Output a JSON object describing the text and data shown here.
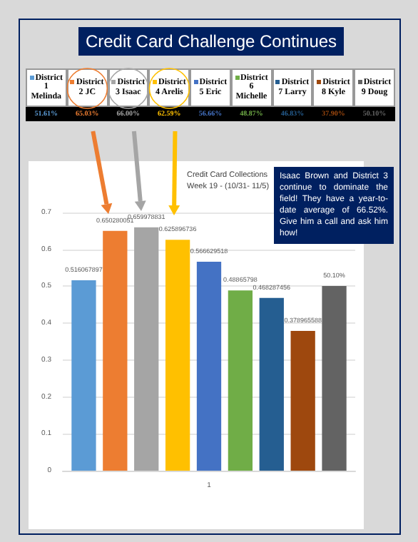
{
  "chart_data": {
    "type": "bar",
    "title": "Credit Card Collections",
    "subtitle": "Week 19 - (10/31- 11/5)",
    "categories": [
      "1"
    ],
    "series": [
      {
        "name": "District 1 Melinda",
        "color": "#5b9bd5",
        "values": [
          0.516067897
        ],
        "value_labels": [
          "0.516067897"
        ]
      },
      {
        "name": "District 2 JC",
        "color": "#ed7d31",
        "values": [
          0.650280051
        ],
        "value_labels": [
          "0.650280051"
        ]
      },
      {
        "name": "District 3 Isaac",
        "color": "#a5a5a5",
        "values": [
          0.659978831
        ],
        "value_labels": [
          "0.659978831"
        ]
      },
      {
        "name": "District 4 Arelis",
        "color": "#ffc000",
        "values": [
          0.625896736
        ],
        "value_labels": [
          "0.625896736"
        ]
      },
      {
        "name": "District 5 Eric",
        "color": "#4472c4",
        "values": [
          0.566629518
        ],
        "value_labels": [
          "0.566629518"
        ]
      },
      {
        "name": "District 6 Michelle",
        "color": "#70ad47",
        "values": [
          0.48865798
        ],
        "value_labels": [
          "0.48865798"
        ]
      },
      {
        "name": "District 7 Larry",
        "color": "#255e91",
        "values": [
          0.468287456
        ],
        "value_labels": [
          "0.468287456"
        ]
      },
      {
        "name": "District 8 Kyle",
        "color": "#9e480e",
        "values": [
          0.378965588
        ],
        "value_labels": [
          "0.378965588"
        ]
      },
      {
        "name": "District 9 Doug",
        "color": "#636363",
        "values": [
          0.501
        ],
        "value_labels": [
          "50.10%"
        ]
      }
    ],
    "legend": "top",
    "ylim": [
      0,
      0.7
    ],
    "yticks": [
      0,
      0.1,
      0.2,
      0.3,
      0.4,
      0.5,
      0.6,
      0.7
    ],
    "grid": "y",
    "annotations": [
      "Credit Card Challenge Continues",
      "51.61%",
      "65.03%",
      "66.00%",
      "62.59%",
      "56.66%",
      "48.87%",
      "46.83%",
      "37.90%",
      "50.10%",
      "Isaac Brown and District 3 continue to dominate the field! They have a year-to-date average of 66.52%. Give him a call and ask him how!"
    ]
  }
}
